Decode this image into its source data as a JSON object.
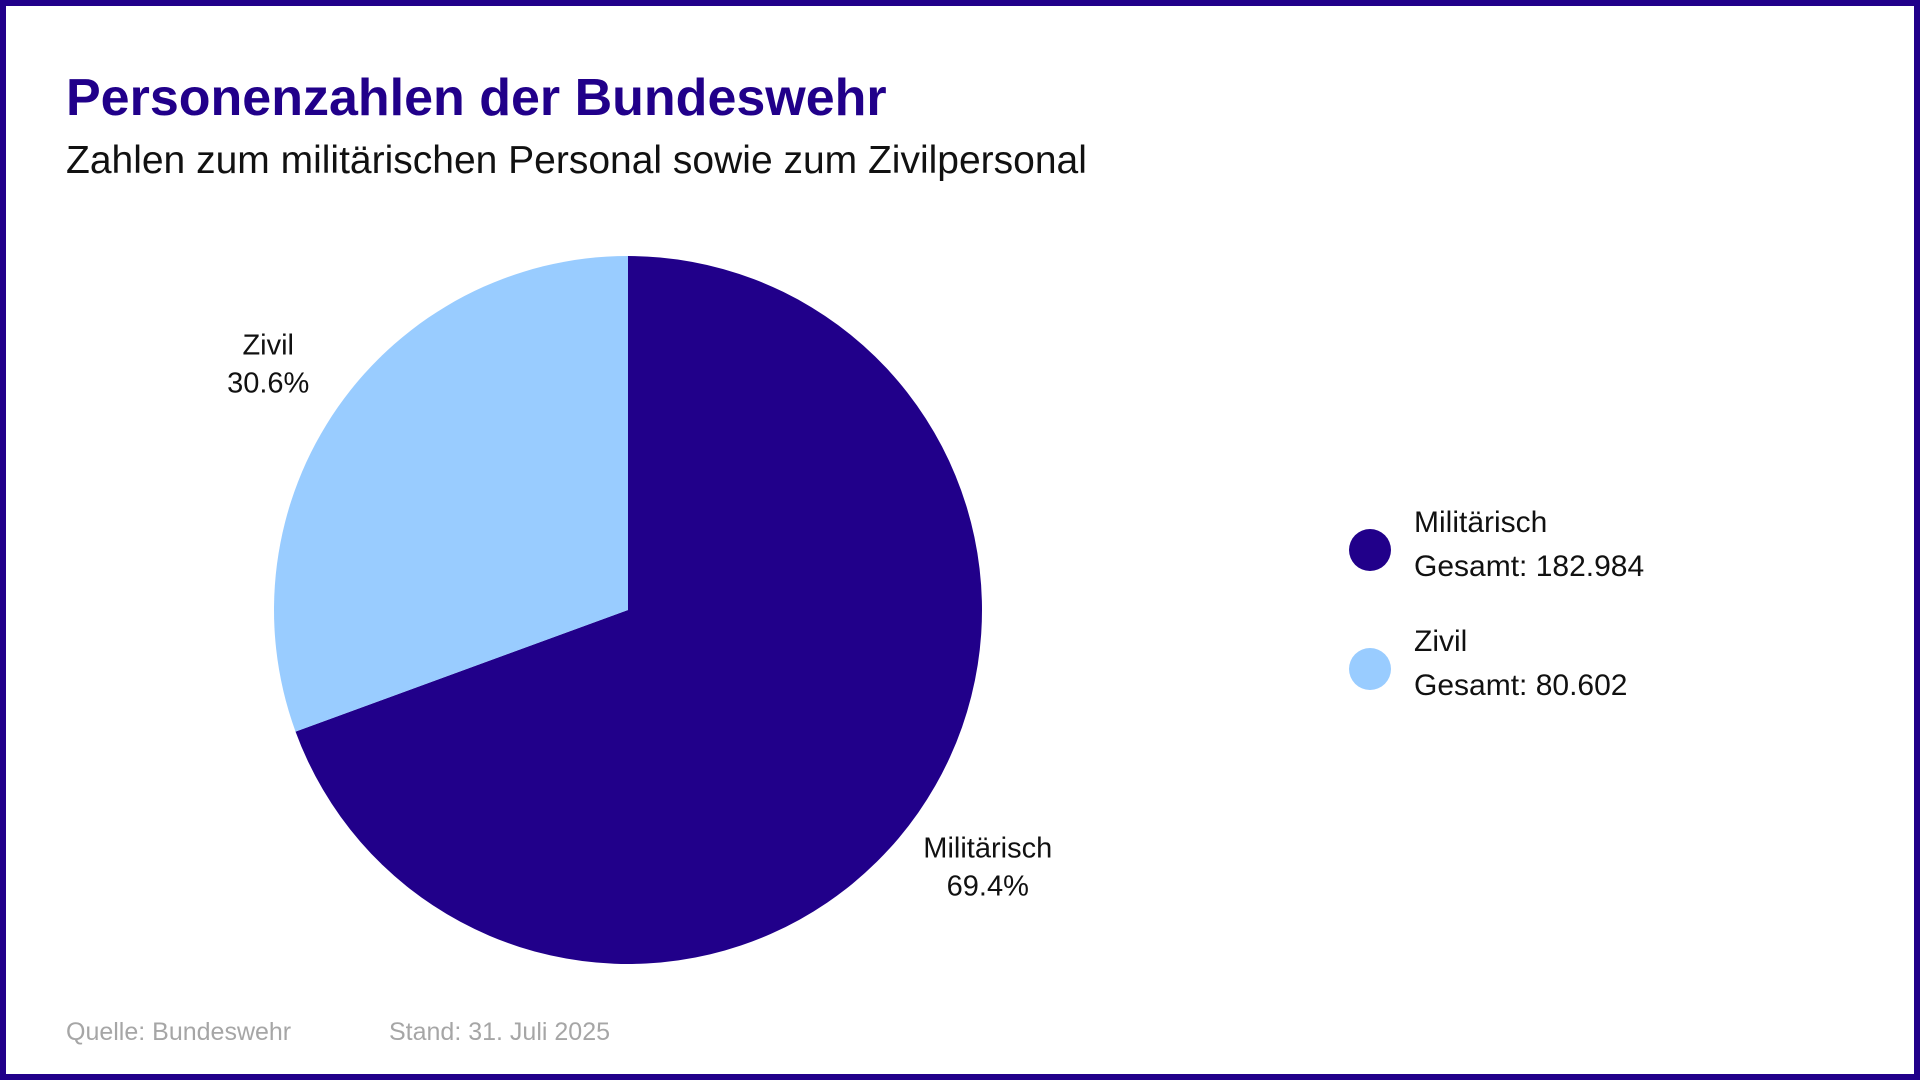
{
  "title": "Personenzahlen der Bundeswehr",
  "subtitle": "Zahlen zum militärischen Personal sowie zum Zivilpersonal",
  "colors": {
    "accent": "#21008a",
    "militaerisch": "#21008a",
    "zivil": "#99ccff",
    "border": "#21008a"
  },
  "chart_data": {
    "type": "pie",
    "title": "Personenzahlen der Bundeswehr",
    "subtitle": "Zahlen zum militärischen Personal sowie zum Zivilpersonal",
    "slices": [
      {
        "label": "Militärisch",
        "value": 182984,
        "percent": 69.4,
        "percent_label": "69.4%",
        "color": "#21008a"
      },
      {
        "label": "Zivil",
        "value": 80602,
        "percent": 30.6,
        "percent_label": "30.6%",
        "color": "#99ccff"
      }
    ],
    "legend_placement": "right"
  },
  "legend": {
    "items": [
      {
        "name": "Militärisch",
        "total": "Gesamt: 182.984"
      },
      {
        "name": "Zivil",
        "total": "Gesamt: 80.602"
      }
    ]
  },
  "footer": {
    "source": "Quelle: Bundeswehr",
    "stand": "Stand: 31. Juli 2025"
  }
}
